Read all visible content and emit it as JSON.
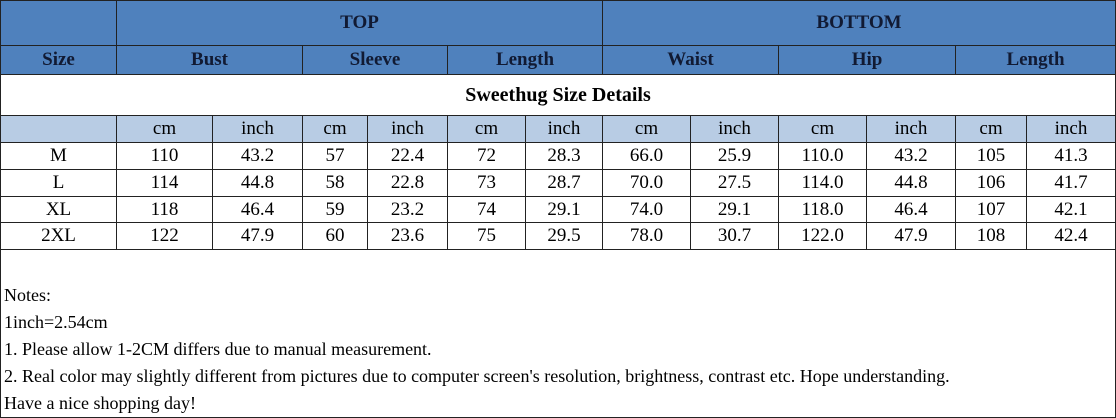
{
  "header": {
    "groups": [
      "TOP",
      "BOTTOM"
    ],
    "columns": [
      "Size",
      "Bust",
      "Sleeve",
      "Length",
      "Waist",
      "Hip",
      "Length"
    ]
  },
  "title": "Sweethug Size Details",
  "table": {
    "units": [
      "cm",
      "inch",
      "cm",
      "inch",
      "cm",
      "inch",
      "cm",
      "inch",
      "cm",
      "inch",
      "cm",
      "inch"
    ],
    "rows": [
      [
        "M",
        "110",
        "43.2",
        "57",
        "22.4",
        "72",
        "28.3",
        "66.0",
        "25.9",
        "110.0",
        "43.2",
        "105",
        "41.3"
      ],
      [
        "L",
        "114",
        "44.8",
        "58",
        "22.8",
        "73",
        "28.7",
        "70.0",
        "27.5",
        "114.0",
        "44.8",
        "106",
        "41.7"
      ],
      [
        "XL",
        "118",
        "46.4",
        "59",
        "23.2",
        "74",
        "29.1",
        "74.0",
        "29.1",
        "118.0",
        "46.4",
        "107",
        "42.1"
      ],
      [
        "2XL",
        "122",
        "47.9",
        "60",
        "23.6",
        "75",
        "29.5",
        "78.0",
        "30.7",
        "122.0",
        "47.9",
        "108",
        "42.4"
      ]
    ]
  },
  "notes": [
    "Notes:",
    "1inch=2.54cm",
    "1. Please allow 1-2CM differs due to manual measurement.",
    "2. Real color may slightly different from pictures due to computer screen's resolution, brightness, contrast etc. Hope understanding.",
    "Have a nice shopping day!"
  ]
}
